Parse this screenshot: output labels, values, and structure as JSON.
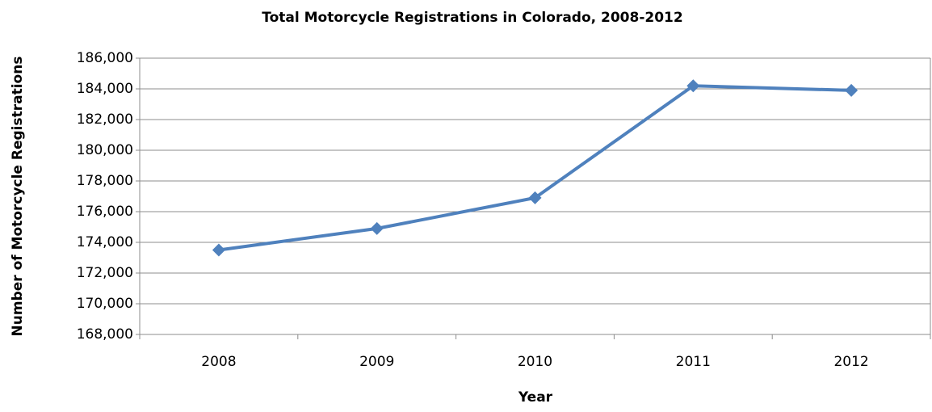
{
  "chart_data": {
    "type": "line",
    "title": "Total Motorcycle Registrations in Colorado, 2008-2012",
    "x_label": "Year",
    "y_label": "Number of Motorcycle Registrations",
    "categories": [
      "2008",
      "2009",
      "2010",
      "2011",
      "2012"
    ],
    "series": [
      {
        "name": "Total Motorcycle Registrations",
        "color": "#4f81bd",
        "values": [
          173500,
          174900,
          176900,
          184200,
          183900
        ]
      }
    ],
    "ylim": [
      168000,
      186000
    ],
    "yticks": [
      {
        "value": 168000,
        "label": "168,000"
      },
      {
        "value": 170000,
        "label": "170,000"
      },
      {
        "value": 172000,
        "label": "172,000"
      },
      {
        "value": 174000,
        "label": "174,000"
      },
      {
        "value": 176000,
        "label": "176,000"
      },
      {
        "value": 178000,
        "label": "178,000"
      },
      {
        "value": 180000,
        "label": "180,000"
      },
      {
        "value": 182000,
        "label": "182,000"
      },
      {
        "value": 184000,
        "label": "184,000"
      },
      {
        "value": 186000,
        "label": "186,000"
      }
    ],
    "grid": true
  }
}
